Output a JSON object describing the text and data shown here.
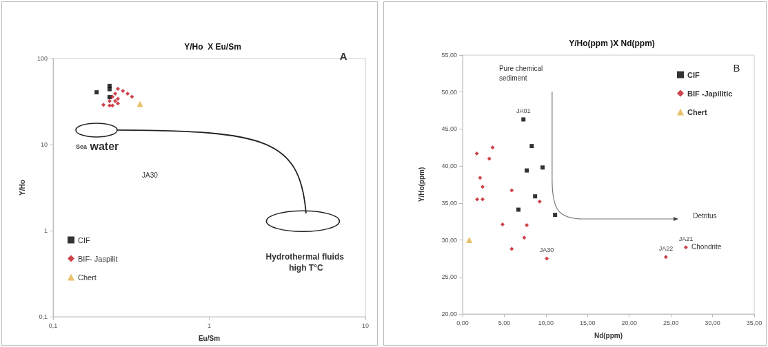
{
  "chart_data": [
    {
      "type": "scatter",
      "title": "Y/Ho  X Eu/Sm",
      "xlabel": "Eu/Sm",
      "ylabel": "Y/Ho",
      "log": "xy",
      "legend": "bottom left",
      "grid": false,
      "xlim": [
        0.1,
        10
      ],
      "xticks": [
        {
          "value": 0.1,
          "label": "0,1"
        },
        1,
        10
      ],
      "ylim": [
        0.1,
        100
      ],
      "yticks": [
        {
          "value": 0.1,
          "label": "0,1"
        },
        1,
        10,
        100
      ],
      "annotations": [
        "A",
        "Sea water",
        "JA30",
        "Hydrothermal fluids high T°C"
      ],
      "series": [
        {
          "name": "CIF",
          "color": "#000000",
          "marker": "square",
          "x": [
            0.19,
            0.23,
            0.23,
            0.23
          ],
          "values": [
            40.5,
            48,
            44,
            35.6
          ]
        },
        {
          "name": "BIF- Jaspilit",
          "color": "#c0141e",
          "marker": "diamond",
          "x": [
            0.26,
            0.28,
            0.3,
            0.32,
            0.25,
            0.24,
            0.26,
            0.21,
            0.23,
            0.24,
            0.25,
            0.26,
            0.23
          ],
          "values": [
            44.5,
            42,
            39,
            36,
            39,
            36,
            34,
            29,
            28.5,
            28.5,
            32,
            30,
            32
          ]
        },
        {
          "name": "Chert",
          "color": "#e2b24a",
          "marker": "triangle",
          "x": [
            0.36
          ],
          "values": [
            29.6
          ]
        }
      ]
    },
    {
      "type": "scatter",
      "title": "Y/Ho(ppm )X Nd(ppm)",
      "xlabel": "Nd(ppm)",
      "ylabel": "Y/Ho(ppm)",
      "legend": "top right",
      "grid": false,
      "xlim": [
        0,
        35
      ],
      "xticks": [
        {
          "value": 0,
          "label": "0,00"
        },
        {
          "value": 5,
          "label": "5,00"
        },
        {
          "value": 10,
          "label": "10,00"
        },
        {
          "value": 15,
          "label": "15,00"
        },
        {
          "value": 20,
          "label": "20,00"
        },
        {
          "value": 25,
          "label": "25,00"
        },
        {
          "value": 30,
          "label": "30,00"
        },
        {
          "value": 35,
          "label": "35,00"
        }
      ],
      "ylim": [
        20,
        55
      ],
      "yticks": [
        {
          "value": 20,
          "label": "20,00"
        },
        {
          "value": 25,
          "label": "25,00"
        },
        {
          "value": 30,
          "label": "30,00"
        },
        {
          "value": 35,
          "label": "35,00"
        },
        {
          "value": 40,
          "label": "40,00"
        },
        {
          "value": 45,
          "label": "45,00"
        },
        {
          "value": 50,
          "label": "50,00"
        },
        {
          "value": 55,
          "label": "55,00"
        }
      ],
      "annotations": [
        "B",
        "Pure chemical sediment",
        "Detritus",
        "Chondrite",
        {
          "text": "JA01",
          "x": 7.3,
          "y": 46.3
        },
        {
          "text": "JA30",
          "x": 10.1,
          "y": 27.5
        },
        {
          "text": "JA22",
          "x": 24.4,
          "y": 27.7
        },
        {
          "text": "JA21",
          "x": 26.8,
          "y": 29.0
        }
      ],
      "series": [
        {
          "name": "CIF",
          "color": "#000000",
          "marker": "square",
          "x": [
            7.3,
            8.3,
            7.7,
            9.6,
            8.7,
            6.7,
            11.1
          ],
          "values": [
            46.3,
            42.7,
            39.4,
            39.8,
            35.9,
            34.1,
            33.4
          ]
        },
        {
          "name": "BIF -Japilitic",
          "color": "#c0141e",
          "marker": "diamond",
          "x": [
            1.7,
            3.6,
            3.2,
            2.1,
            2.4,
            1.75,
            2.4,
            5.9,
            9.25,
            4.8,
            7.7,
            7.4,
            5.9,
            10.1,
            24.4,
            26.8
          ],
          "values": [
            41.7,
            42.5,
            41.0,
            38.4,
            37.2,
            35.5,
            35.5,
            36.7,
            35.2,
            32.1,
            32.0,
            30.3,
            28.8,
            27.5,
            27.7,
            29.0
          ]
        },
        {
          "name": "Chert",
          "color": "#e2b24a",
          "marker": "triangle",
          "x": [
            0.8
          ],
          "values": [
            30.0
          ]
        }
      ]
    }
  ]
}
